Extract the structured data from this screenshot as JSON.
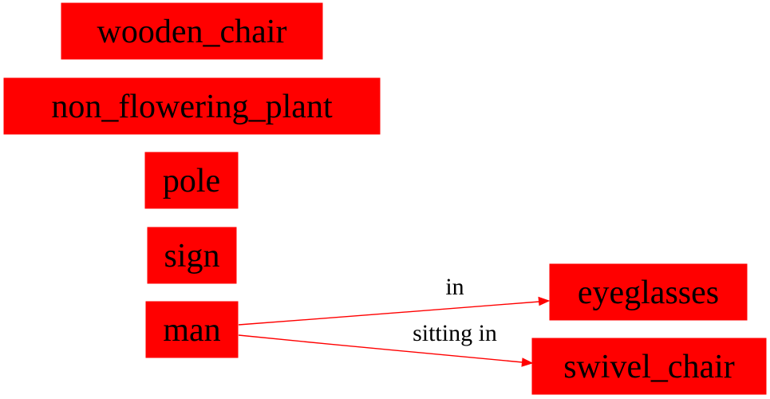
{
  "colors": {
    "node_fill": "#ff0000",
    "edge": "#ff0000",
    "text": "#000000",
    "background": "#ffffff"
  },
  "nodes": [
    {
      "id": "wooden_chair",
      "label": "wooden_chair"
    },
    {
      "id": "non_flowering_plant",
      "label": "non_flowering_plant"
    },
    {
      "id": "pole",
      "label": "pole"
    },
    {
      "id": "sign",
      "label": "sign"
    },
    {
      "id": "man",
      "label": "man"
    },
    {
      "id": "eyeglasses",
      "label": "eyeglasses"
    },
    {
      "id": "swivel_chair",
      "label": "swivel_chair"
    }
  ],
  "edges": [
    {
      "from": "man",
      "to": "eyeglasses",
      "label": "in"
    },
    {
      "from": "man",
      "to": "swivel_chair",
      "label": "sitting in"
    }
  ]
}
